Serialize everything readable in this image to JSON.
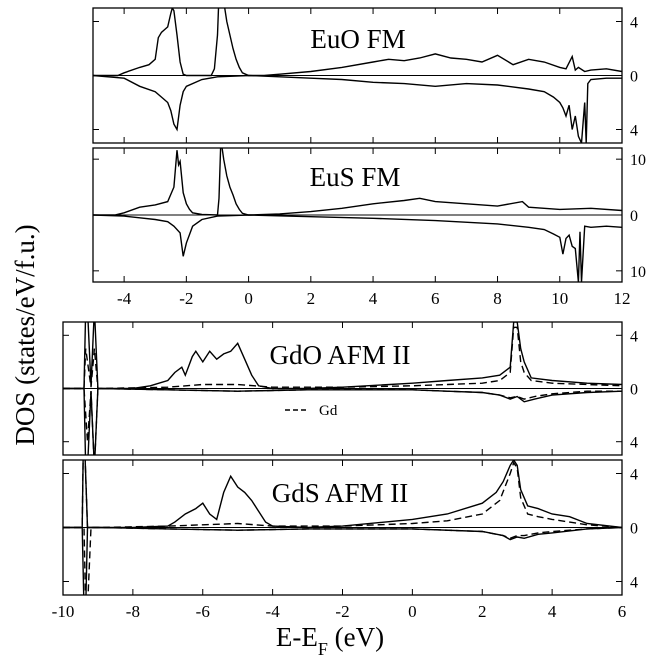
{
  "figure": {
    "ylabel": "DOS (states/eV/f.u.)",
    "xlabel_main": "E-E",
    "xlabel_sub": "F",
    "xlabel_tail": " (eV)"
  },
  "chart_data": [
    {
      "type": "line",
      "title": "EuO FM",
      "xlim": [
        -5,
        12
      ],
      "ylim": [
        -5,
        5
      ],
      "yticks": [
        4,
        0,
        4
      ],
      "xticks": [],
      "series": [
        {
          "values_note": "spin up (positive)",
          "x": [
            -5,
            -4.2,
            -4.0,
            -3.5,
            -3.2,
            -3.0,
            -2.9,
            -2.8,
            -2.7,
            -2.6,
            -2.5,
            -2.45,
            -2.4,
            -2.3,
            -2.2,
            -2.1,
            -2.0,
            -1.8,
            -1.5,
            -1.2,
            -1.1,
            -1.0,
            -0.95,
            -0.9,
            -0.8,
            -0.7,
            -0.6,
            -0.5,
            -0.4,
            -0.3,
            -0.2,
            0,
            0.5,
            1,
            2,
            3,
            4,
            4.5,
            5,
            5.5,
            6,
            6.5,
            7,
            7.5,
            8,
            8.5,
            9,
            9.5,
            10,
            10.2,
            10.4,
            10.5,
            10.6,
            10.8,
            11,
            11.5,
            12
          ],
          "y": [
            0,
            0,
            0.2,
            0.6,
            0.8,
            1.2,
            2.8,
            3.2,
            3.4,
            3.6,
            4.6,
            5.0,
            4.8,
            3.0,
            1.0,
            0.1,
            0,
            0,
            0,
            0,
            0.5,
            3.0,
            6.0,
            6.0,
            5.5,
            4.0,
            3.0,
            2.0,
            1.2,
            0.6,
            0.2,
            0,
            0,
            0.1,
            0.3,
            0.6,
            1.0,
            1.2,
            1.1,
            1.3,
            1.6,
            1.3,
            1.2,
            1.0,
            1.5,
            0.8,
            1.2,
            1.0,
            0.6,
            0.5,
            1.4,
            0.4,
            0.6,
            0.3,
            0.4,
            0.5,
            0.3
          ]
        },
        {
          "values_note": "spin down (negative)",
          "x": [
            -5,
            -4.0,
            -3.5,
            -3.0,
            -2.8,
            -2.6,
            -2.5,
            -2.4,
            -2.3,
            -2.2,
            -2.1,
            -2.0,
            -1.5,
            -1.0,
            0,
            1,
            2,
            3,
            4,
            5,
            6,
            7,
            8,
            9,
            9.5,
            9.8,
            10.0,
            10.1,
            10.2,
            10.3,
            10.4,
            10.5,
            10.6,
            10.7,
            10.8,
            10.85,
            10.9,
            11.0,
            11.5,
            12
          ],
          "y": [
            0,
            -0.2,
            -0.8,
            -1.2,
            -1.6,
            -2.0,
            -2.6,
            -3.6,
            -4.0,
            -2.2,
            -1.2,
            -0.8,
            -0.3,
            -0.1,
            0,
            -0.1,
            -0.2,
            -0.3,
            -0.5,
            -0.6,
            -0.8,
            -0.6,
            -0.7,
            -1.0,
            -1.2,
            -1.6,
            -2.0,
            -2.4,
            -3.0,
            -2.2,
            -4.0,
            -3.0,
            -4.5,
            -5.0,
            -2.0,
            -5.0,
            -0.6,
            -0.3,
            -0.2,
            -0.2
          ]
        }
      ]
    },
    {
      "type": "line",
      "title": "EuS FM",
      "xlim": [
        -5,
        12
      ],
      "ylim": [
        -12,
        12
      ],
      "yticks": [
        10,
        0,
        10
      ],
      "xticks": [
        -4,
        -2,
        0,
        2,
        4,
        6,
        8,
        10,
        12
      ],
      "series": [
        {
          "values_note": "spin up (positive)",
          "x": [
            -5,
            -4.3,
            -4.0,
            -3.5,
            -3.0,
            -2.6,
            -2.4,
            -2.3,
            -2.25,
            -2.2,
            -2.1,
            -2.0,
            -1.9,
            -1.8,
            -1.5,
            -1.0,
            -0.95,
            -0.9,
            -0.85,
            -0.8,
            -0.7,
            -0.6,
            -0.5,
            -0.4,
            -0.3,
            -0.2,
            0,
            1,
            2,
            3,
            4,
            5,
            5.5,
            6,
            7,
            8,
            8.8,
            9,
            10,
            11,
            12
          ],
          "y": [
            0,
            0,
            0.4,
            1.4,
            1.8,
            2.4,
            5.0,
            11.6,
            9.0,
            9.6,
            4.0,
            2.0,
            1.0,
            0.4,
            0.1,
            0,
            3.0,
            12.0,
            12.0,
            10.0,
            7.0,
            5.0,
            3.6,
            2.0,
            1.0,
            0.3,
            0,
            0.2,
            0.6,
            1.2,
            2.0,
            2.6,
            3.0,
            2.4,
            2.0,
            1.6,
            2.4,
            1.4,
            1.0,
            1.2,
            0.8
          ]
        },
        {
          "values_note": "spin down (negative)",
          "x": [
            -5,
            -4.0,
            -3.5,
            -3.0,
            -2.6,
            -2.4,
            -2.2,
            -2.1,
            -2.0,
            -1.8,
            -1.5,
            -1.0,
            0,
            2,
            4,
            6,
            8,
            9,
            9.5,
            9.8,
            10.0,
            10.1,
            10.2,
            10.3,
            10.4,
            10.5,
            10.6,
            10.65,
            10.7,
            10.8,
            11.0,
            11.5,
            12
          ],
          "y": [
            0,
            -0.2,
            -0.5,
            -0.8,
            -1.2,
            -2.0,
            -3.2,
            -7.4,
            -5.0,
            -2.0,
            -0.8,
            -0.2,
            0,
            -0.3,
            -0.6,
            -1.0,
            -1.6,
            -2.2,
            -2.6,
            -3.4,
            -4.0,
            -7.0,
            -4.2,
            -3.6,
            -5.6,
            -6.0,
            -12.0,
            -3.0,
            -12.0,
            -2.0,
            -2.2,
            -2.0,
            -2.2
          ]
        }
      ]
    },
    {
      "type": "line",
      "title": "GdO AFM II",
      "xlim": [
        -10,
        6
      ],
      "ylim": [
        -5,
        5
      ],
      "yticks": [
        4,
        0,
        4
      ],
      "xticks": [],
      "legend": {
        "entries": [
          "Gd"
        ],
        "position": "center-left"
      },
      "series": [
        {
          "values_note": "spin up total",
          "x": [
            -10,
            -9.4,
            -9.35,
            -9.3,
            -9.2,
            -9.1,
            -9.0,
            -8.0,
            -7.5,
            -7.0,
            -6.8,
            -6.6,
            -6.5,
            -6.3,
            -6.2,
            -6.0,
            -5.8,
            -5.6,
            -5.4,
            -5.2,
            -5.0,
            -4.8,
            -4.6,
            -4.4,
            -4.0,
            -3.0,
            -2.0,
            0,
            1,
            2,
            2.5,
            2.8,
            2.9,
            3.0,
            3.1,
            3.2,
            3.4,
            4,
            5,
            6
          ],
          "y": [
            0,
            0,
            6.0,
            6.0,
            0.2,
            6.0,
            0,
            0,
            0.2,
            0.6,
            1.2,
            1.6,
            1.0,
            2.4,
            2.8,
            2.0,
            2.8,
            2.2,
            2.6,
            2.8,
            3.4,
            2.2,
            1.0,
            0.2,
            0,
            0,
            0.1,
            0.4,
            0.6,
            0.8,
            1.0,
            1.6,
            5.0,
            5.0,
            3.0,
            2.0,
            0.8,
            0.6,
            0.4,
            0.3
          ]
        },
        {
          "values_note": "spin down total",
          "x": [
            -10,
            -9.4,
            -9.35,
            -9.3,
            -9.2,
            -9.1,
            -9.0,
            -7,
            -5,
            -3,
            0,
            1,
            2,
            2.5,
            2.8,
            3.0,
            3.2,
            3.5,
            4,
            5,
            6
          ],
          "y": [
            0,
            0,
            -6.0,
            -6.0,
            -0.2,
            -6.0,
            0,
            -0.1,
            -0.2,
            -0.1,
            -0.1,
            -0.2,
            -0.3,
            -0.5,
            -0.8,
            -0.6,
            -1.0,
            -0.8,
            -0.5,
            -0.3,
            -0.2
          ]
        },
        {
          "name": "Gd",
          "dashed": true,
          "values_note": "Gd up",
          "x": [
            -10,
            -9.4,
            -9.35,
            -9.2,
            -9.1,
            -9.0,
            -7,
            -6,
            -5,
            -4,
            -2,
            0,
            1,
            2,
            2.5,
            2.8,
            2.9,
            3.0,
            3.1,
            3.2,
            3.4,
            4,
            5,
            6
          ],
          "y": [
            0,
            0,
            3.0,
            0.1,
            3.0,
            0,
            0.1,
            0.3,
            0.3,
            0.1,
            0.1,
            0.2,
            0.3,
            0.4,
            0.6,
            1.2,
            4.6,
            4.6,
            2.0,
            1.2,
            0.6,
            0.4,
            0.3,
            0.2
          ]
        },
        {
          "name": "Gd",
          "dashed": true,
          "values_note": "Gd down",
          "x": [
            -10,
            -9.4,
            -9.3,
            -9.2,
            -9.1,
            -9.0,
            -7,
            -5,
            -3,
            0,
            1,
            2,
            2.5,
            2.8,
            3.0,
            3.2,
            3.5,
            4,
            5,
            6
          ],
          "y": [
            0,
            0,
            -4.0,
            -0.2,
            -6.0,
            0,
            -0.1,
            -0.2,
            -0.1,
            -0.1,
            -0.2,
            -0.3,
            -0.5,
            -0.7,
            -0.6,
            -0.8,
            -0.6,
            -0.4,
            -0.2,
            -0.2
          ]
        }
      ]
    },
    {
      "type": "line",
      "title": "GdS AFM II",
      "xlim": [
        -10,
        6
      ],
      "ylim": [
        -5,
        5
      ],
      "yticks": [
        4,
        0,
        4
      ],
      "xticks": [
        -10,
        -8,
        -6,
        -4,
        -2,
        0,
        2,
        4,
        6
      ],
      "series": [
        {
          "values_note": "spin up total",
          "x": [
            -10,
            -9.45,
            -9.42,
            -9.38,
            -9.3,
            -9.0,
            -8,
            -7.0,
            -6.8,
            -6.5,
            -6.2,
            -6.0,
            -5.8,
            -5.6,
            -5.4,
            -5.2,
            -5.0,
            -4.8,
            -4.6,
            -4.4,
            -4.2,
            -4.0,
            -3.0,
            -2.0,
            0,
            1,
            2,
            2.4,
            2.6,
            2.8,
            2.9,
            3.0,
            3.1,
            3.3,
            3.6,
            4,
            4.5,
            5,
            6
          ],
          "y": [
            0,
            0,
            6.0,
            6.0,
            0,
            0,
            0,
            0.1,
            0.4,
            1.0,
            1.4,
            1.8,
            1.0,
            0.6,
            2.6,
            3.8,
            3.0,
            2.6,
            2.0,
            1.2,
            0.4,
            0.1,
            0,
            0.1,
            0.6,
            1.0,
            1.8,
            2.6,
            3.4,
            4.6,
            5.0,
            4.6,
            2.8,
            1.6,
            1.4,
            1.0,
            0.8,
            0.3,
            0
          ]
        },
        {
          "values_note": "spin down total",
          "x": [
            -10,
            -9.45,
            -9.4,
            -9.35,
            -9.3,
            -9.0,
            -7,
            -5,
            -3,
            0,
            2,
            2.6,
            2.8,
            3.0,
            3.2,
            3.6,
            4,
            5,
            6
          ],
          "y": [
            0,
            0,
            -6.0,
            -6.0,
            0,
            0,
            -0.1,
            -0.2,
            -0.1,
            -0.1,
            -0.3,
            -0.6,
            -0.9,
            -0.7,
            -0.8,
            -0.5,
            -0.4,
            -0.1,
            0
          ]
        },
        {
          "name": "Gd",
          "dashed": true,
          "values_note": "Gd up",
          "x": [
            -10,
            -9.45,
            -9.42,
            -9.38,
            -9.3,
            -9.0,
            -7,
            -6,
            -5,
            -4,
            -2,
            0,
            1,
            2,
            2.5,
            2.8,
            2.9,
            3.0,
            3.1,
            3.3,
            3.6,
            4,
            4.5,
            5,
            6
          ],
          "y": [
            0,
            0,
            6.0,
            6.0,
            0,
            0,
            0.1,
            0.2,
            0.3,
            0.1,
            0.1,
            0.3,
            0.5,
            1.0,
            2.0,
            4.0,
            4.8,
            4.4,
            2.2,
            1.0,
            0.8,
            0.6,
            0.4,
            0.2,
            0
          ]
        },
        {
          "name": "Gd",
          "dashed": true,
          "values_note": "Gd down",
          "x": [
            -10,
            -9.4,
            -9.35,
            -9.3,
            -9.2,
            -9.0,
            -7,
            -5,
            -3,
            0,
            2,
            2.6,
            2.8,
            3.0,
            3.2,
            3.6,
            4,
            5,
            6
          ],
          "y": [
            0,
            0,
            -6.0,
            -6.0,
            0,
            0,
            -0.1,
            -0.2,
            -0.1,
            -0.1,
            -0.3,
            -0.6,
            -0.8,
            -0.6,
            -0.6,
            -0.4,
            -0.3,
            -0.1,
            0
          ]
        }
      ]
    }
  ]
}
